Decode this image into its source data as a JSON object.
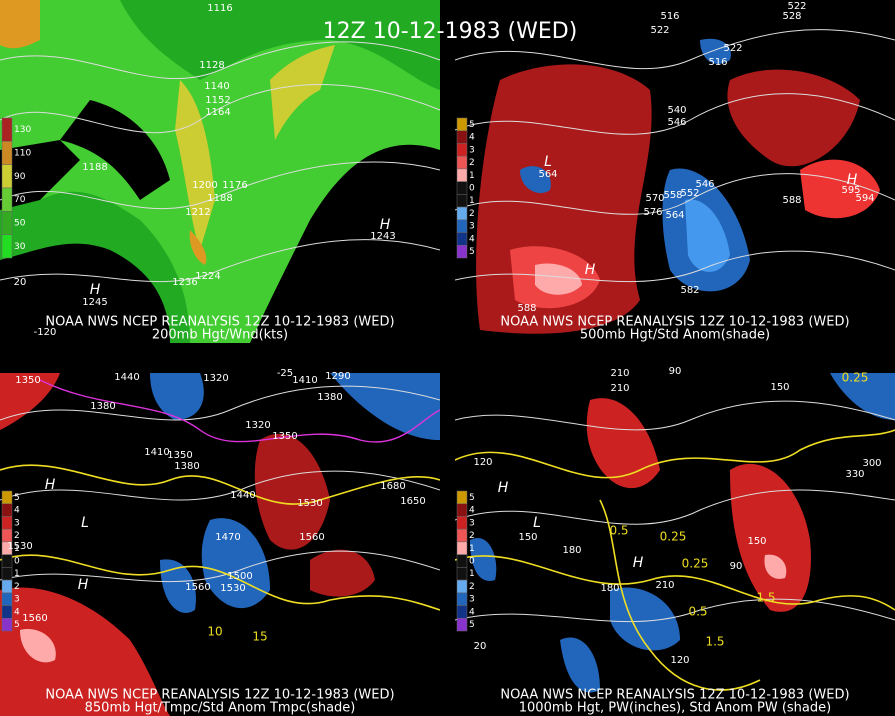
{
  "title": "12Z 10-12-1983 (WED)",
  "panels": [
    {
      "source": "NOAA NWS NCEP REANALYSIS 12Z 10-12-1983 (WED)",
      "caption": "200mb Hgt/Wnd(kts)",
      "legend": [
        "130",
        "110",
        "90",
        "70",
        "50",
        "30"
      ],
      "labels": [
        "1116",
        "1128",
        "1140",
        "1152",
        "1164",
        "1188",
        "1200",
        "1176",
        "1188",
        "1212",
        "1224",
        "1236",
        "H",
        "1243",
        "H",
        "1245",
        "20",
        "-120"
      ]
    },
    {
      "source": "NOAA NWS NCEP REANALYSIS 12Z 10-12-1983 (WED)",
      "caption": "500mb Hgt/Std Anom(shade)",
      "legend": [
        "5",
        "4",
        "3",
        "2",
        "1",
        "0",
        "1",
        "2",
        "3",
        "4",
        "5"
      ],
      "labels": [
        "516",
        "522",
        "528",
        "522",
        "516",
        "522",
        "540",
        "546",
        "L",
        "564",
        "570",
        "558",
        "552",
        "546",
        "576",
        "564",
        "582",
        "588",
        "588",
        "594",
        "H",
        "595",
        "H"
      ]
    },
    {
      "source": "NOAA NWS NCEP REANALYSIS 12Z 10-12-1983 (WED)",
      "caption": "850mb Hgt/Tmpc/Std Anom Tmpc(shade)",
      "legend": [
        "5",
        "4",
        "3",
        "2",
        "1",
        "0",
        "1",
        "2",
        "3",
        "4",
        "5"
      ],
      "labels": [
        "1350",
        "1440",
        "1320",
        "1410",
        "1290",
        "1380",
        "1380",
        "1410",
        "1350",
        "1380",
        "1320",
        "1350",
        "1440",
        "1470",
        "1500",
        "1530",
        "1560",
        "1530",
        "1560",
        "1530",
        "1560",
        "1650",
        "1680",
        "10",
        "15",
        "-25",
        "H",
        "L",
        "H"
      ]
    },
    {
      "source": "NOAA NWS NCEP REANALYSIS 12Z 10-12-1983 (WED)",
      "caption": "1000mb Hgt, PW(inches), Std Anom PW (shade)",
      "legend": [
        "5",
        "4",
        "3",
        "2",
        "1",
        "0",
        "1",
        "2",
        "3",
        "4",
        "5"
      ],
      "labels": [
        "210",
        "210",
        "90",
        "150",
        "0.25",
        "120",
        "150",
        "180",
        "210",
        "180",
        "330",
        "300",
        "150",
        "90",
        "0.5",
        "0.25",
        "0.25",
        "0.5",
        "1.5",
        "1.5",
        "120",
        "20",
        "H",
        "L",
        "H"
      ]
    }
  ]
}
